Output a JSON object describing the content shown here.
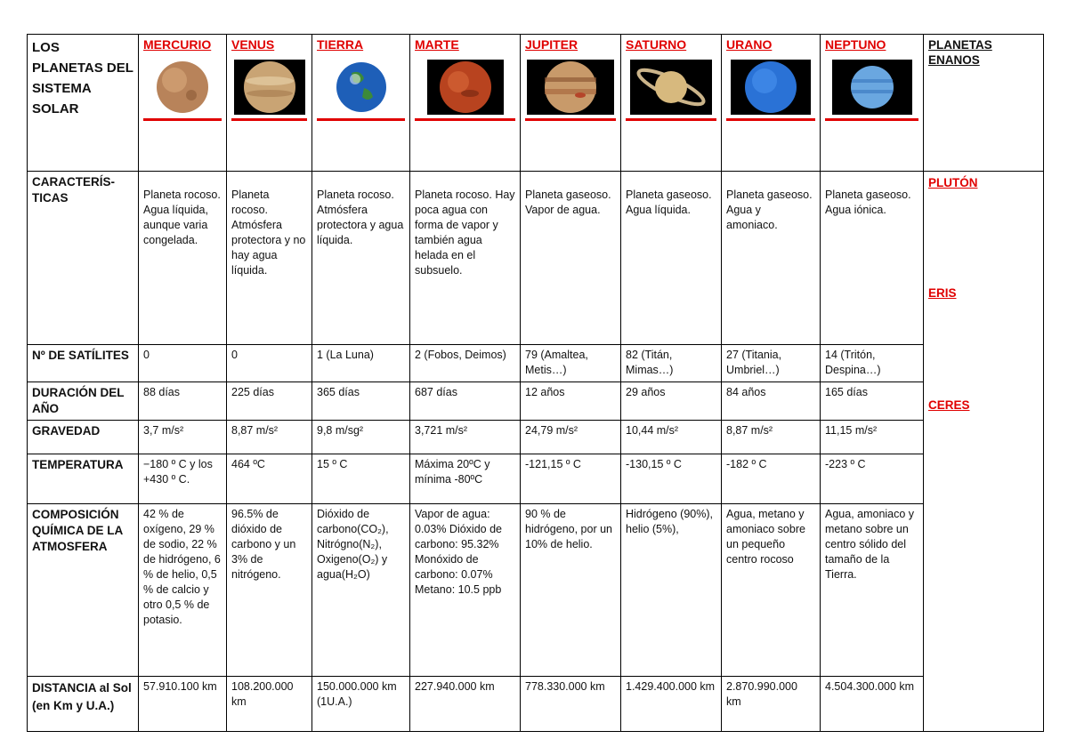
{
  "table": {
    "title": "LOS PLANETAS DEL SISTEMA SOLAR",
    "planets": [
      "MERCURIO",
      "VENUS",
      "TIERRA",
      "MARTE",
      "JUPITER",
      "SATURNO",
      "URANO",
      "NEPTUNO"
    ],
    "dwarf_header": "PLANETAS ENANOS",
    "dwarf_planets": [
      "PLUTÓN",
      "ERIS",
      "CERES"
    ],
    "rows": {
      "caracteristicas": {
        "label": "CARACTERÍS-TICAS",
        "values": [
          "Planeta rocoso. Agua líquida, aunque varia congelada.",
          "Planeta rocoso. Atmósfera protectora y no hay agua líquida.",
          "Planeta rocoso. Atmósfera protectora y agua líquida.",
          "Planeta rocoso. Hay poca agua con forma de vapor y también agua helada en el subsuelo.",
          "Planeta gaseoso. Vapor de agua.",
          "Planeta gaseoso. Agua líquida.",
          "Planeta gaseoso. Agua y amoniaco.",
          "Planeta gaseoso. Agua iónica."
        ]
      },
      "satelites": {
        "label": "Nº DE SATÍLITES",
        "values": [
          "0",
          "0",
          "1 (La Luna)",
          "2 (Fobos, Deimos)",
          "79 (Amaltea, Metis…)",
          "82 (Titán, Mimas…)",
          "27 (Titania, Umbriel…)",
          "14 (Tritón, Despina…)"
        ]
      },
      "duracion": {
        "label": "DURACIÓN DEL AÑO",
        "values": [
          "88 días",
          "225 días",
          "365 días",
          "687 días",
          "12 años",
          "29 años",
          "84 años",
          "165 días"
        ]
      },
      "gravedad": {
        "label": "GRAVEDAD",
        "values": [
          "3,7 m/s²",
          "8,87 m/s²",
          "9,8 m/sg²",
          "3,721 m/s²",
          "24,79 m/s²",
          "10,44 m/s²",
          "8,87 m/s²",
          "11,15 m/s²"
        ]
      },
      "temperatura": {
        "label": "TEMPERATURA",
        "values": [
          "−180 º C y los +430 º C.",
          "464 ºC",
          "15 º C",
          "Máxima 20ºC y mínima -80ºC",
          "-121,15 º C",
          "-130,15 º C",
          "-182 º C",
          "-223 º C"
        ]
      },
      "composicion": {
        "label": "COMPOSICIÓN QUÍMICA DE LA ATMOSFERA",
        "values": [
          "42 % de oxígeno, 29 % de sodio, 22 % de hidrógeno, 6 % de helio, 0,5 % de calcio y otro 0,5 % de potasio.",
          "96.5% de dióxido de carbono y un 3% de nitrógeno.",
          "Dióxido de carbono(CO₂), Nitrógno(N₂), Oxigeno(O₂) y agua(H₂O)",
          "Vapor de agua: 0.03% Dióxido de carbono: 95.32% Monóxido de carbono: 0.07% Metano: 10.5 ppb",
          "90 % de hidrógeno, por un 10% de helio.",
          "Hidrógeno (90%), helio (5%),",
          "Agua, metano y amoniaco sobre un pequeño centro rocoso",
          "Agua, amoniaco y metano sobre un centro sólido del tamaño de la Tierra."
        ]
      },
      "distancia": {
        "label": "DISTANCIA al Sol (en Km y U.A.)",
        "values": [
          "57.910.100 km",
          "108.200.000 km",
          "150.000.000 km (1U.A.)",
          "227.940.000 km",
          "778.330.000 km",
          "1.429.400.000 km",
          "2.870.990.000 km",
          "4.504.300.000 km"
        ]
      }
    }
  }
}
